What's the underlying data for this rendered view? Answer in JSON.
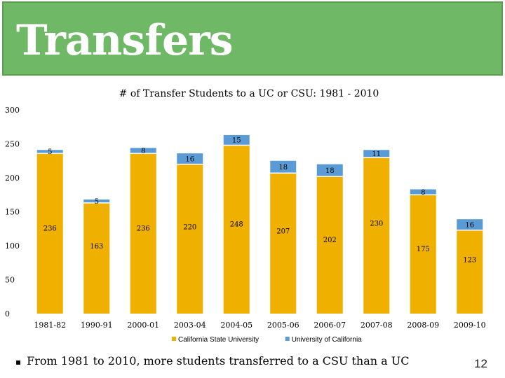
{
  "slide": {
    "title": "Transfers",
    "bullet_symbol": "▪",
    "bullet": "From 1981 to 2010, more students transferred to a CSU than a UC",
    "page_number": "12"
  },
  "colors": {
    "title_bar": "#6fb865",
    "csu": "#f0b000",
    "uc": "#5b9bd5"
  },
  "chart_data": {
    "type": "bar",
    "stacked": true,
    "title": "# of Transfer Students  to a UC or CSU: 1981 - 2010",
    "categories": [
      "1981-82",
      "1990-91",
      "2000-01",
      "2003-04",
      "2004-05",
      "2005-06",
      "2006-07",
      "2007-08",
      "2008-09",
      "2009-10"
    ],
    "series": [
      {
        "name": "California State University",
        "values": [
          236,
          163,
          236,
          220,
          248,
          207,
          202,
          230,
          175,
          123
        ],
        "color": "#f0b000"
      },
      {
        "name": "University of California",
        "values": [
          5,
          5,
          8,
          16,
          15,
          18,
          18,
          11,
          8,
          16
        ],
        "color": "#5b9bd5"
      }
    ],
    "yticks": [
      "0",
      "50",
      "100",
      "150",
      "200",
      "250",
      "300"
    ],
    "ylim": [
      0,
      300
    ],
    "xlabel": "",
    "ylabel": "",
    "legend_position": "bottom",
    "grid": false
  }
}
